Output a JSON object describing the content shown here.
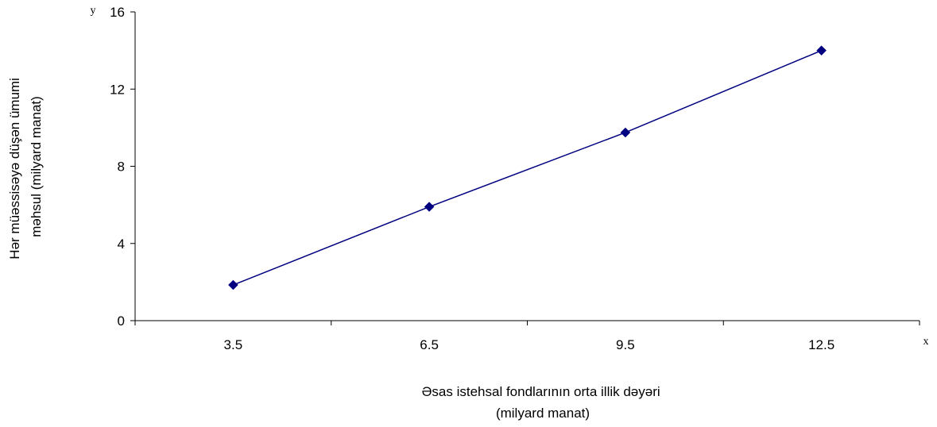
{
  "chart_data": {
    "type": "line",
    "categories": [
      "3.5",
      "6.5",
      "9.5",
      "12.5"
    ],
    "series": [
      {
        "values": [
          1.85,
          5.9,
          9.75,
          14.0
        ]
      }
    ],
    "y_ticks": [
      "0",
      "4",
      "8",
      "12",
      "16"
    ],
    "ylim": [
      0,
      16
    ],
    "y_axis_letter": "y",
    "x_axis_letter": "x",
    "xlabel_lines": [
      "Əsas istehsal fondlarının orta illik dəyəri",
      "(milyard manat)"
    ],
    "ylabel_lines": [
      "Hər müəssisəyə düşən ümumi",
      "məhsul (milyard manat)"
    ],
    "grid": false,
    "legend": "none",
    "colors": {
      "line": "#000080",
      "marker": "#000080",
      "axis": "#000000"
    }
  }
}
